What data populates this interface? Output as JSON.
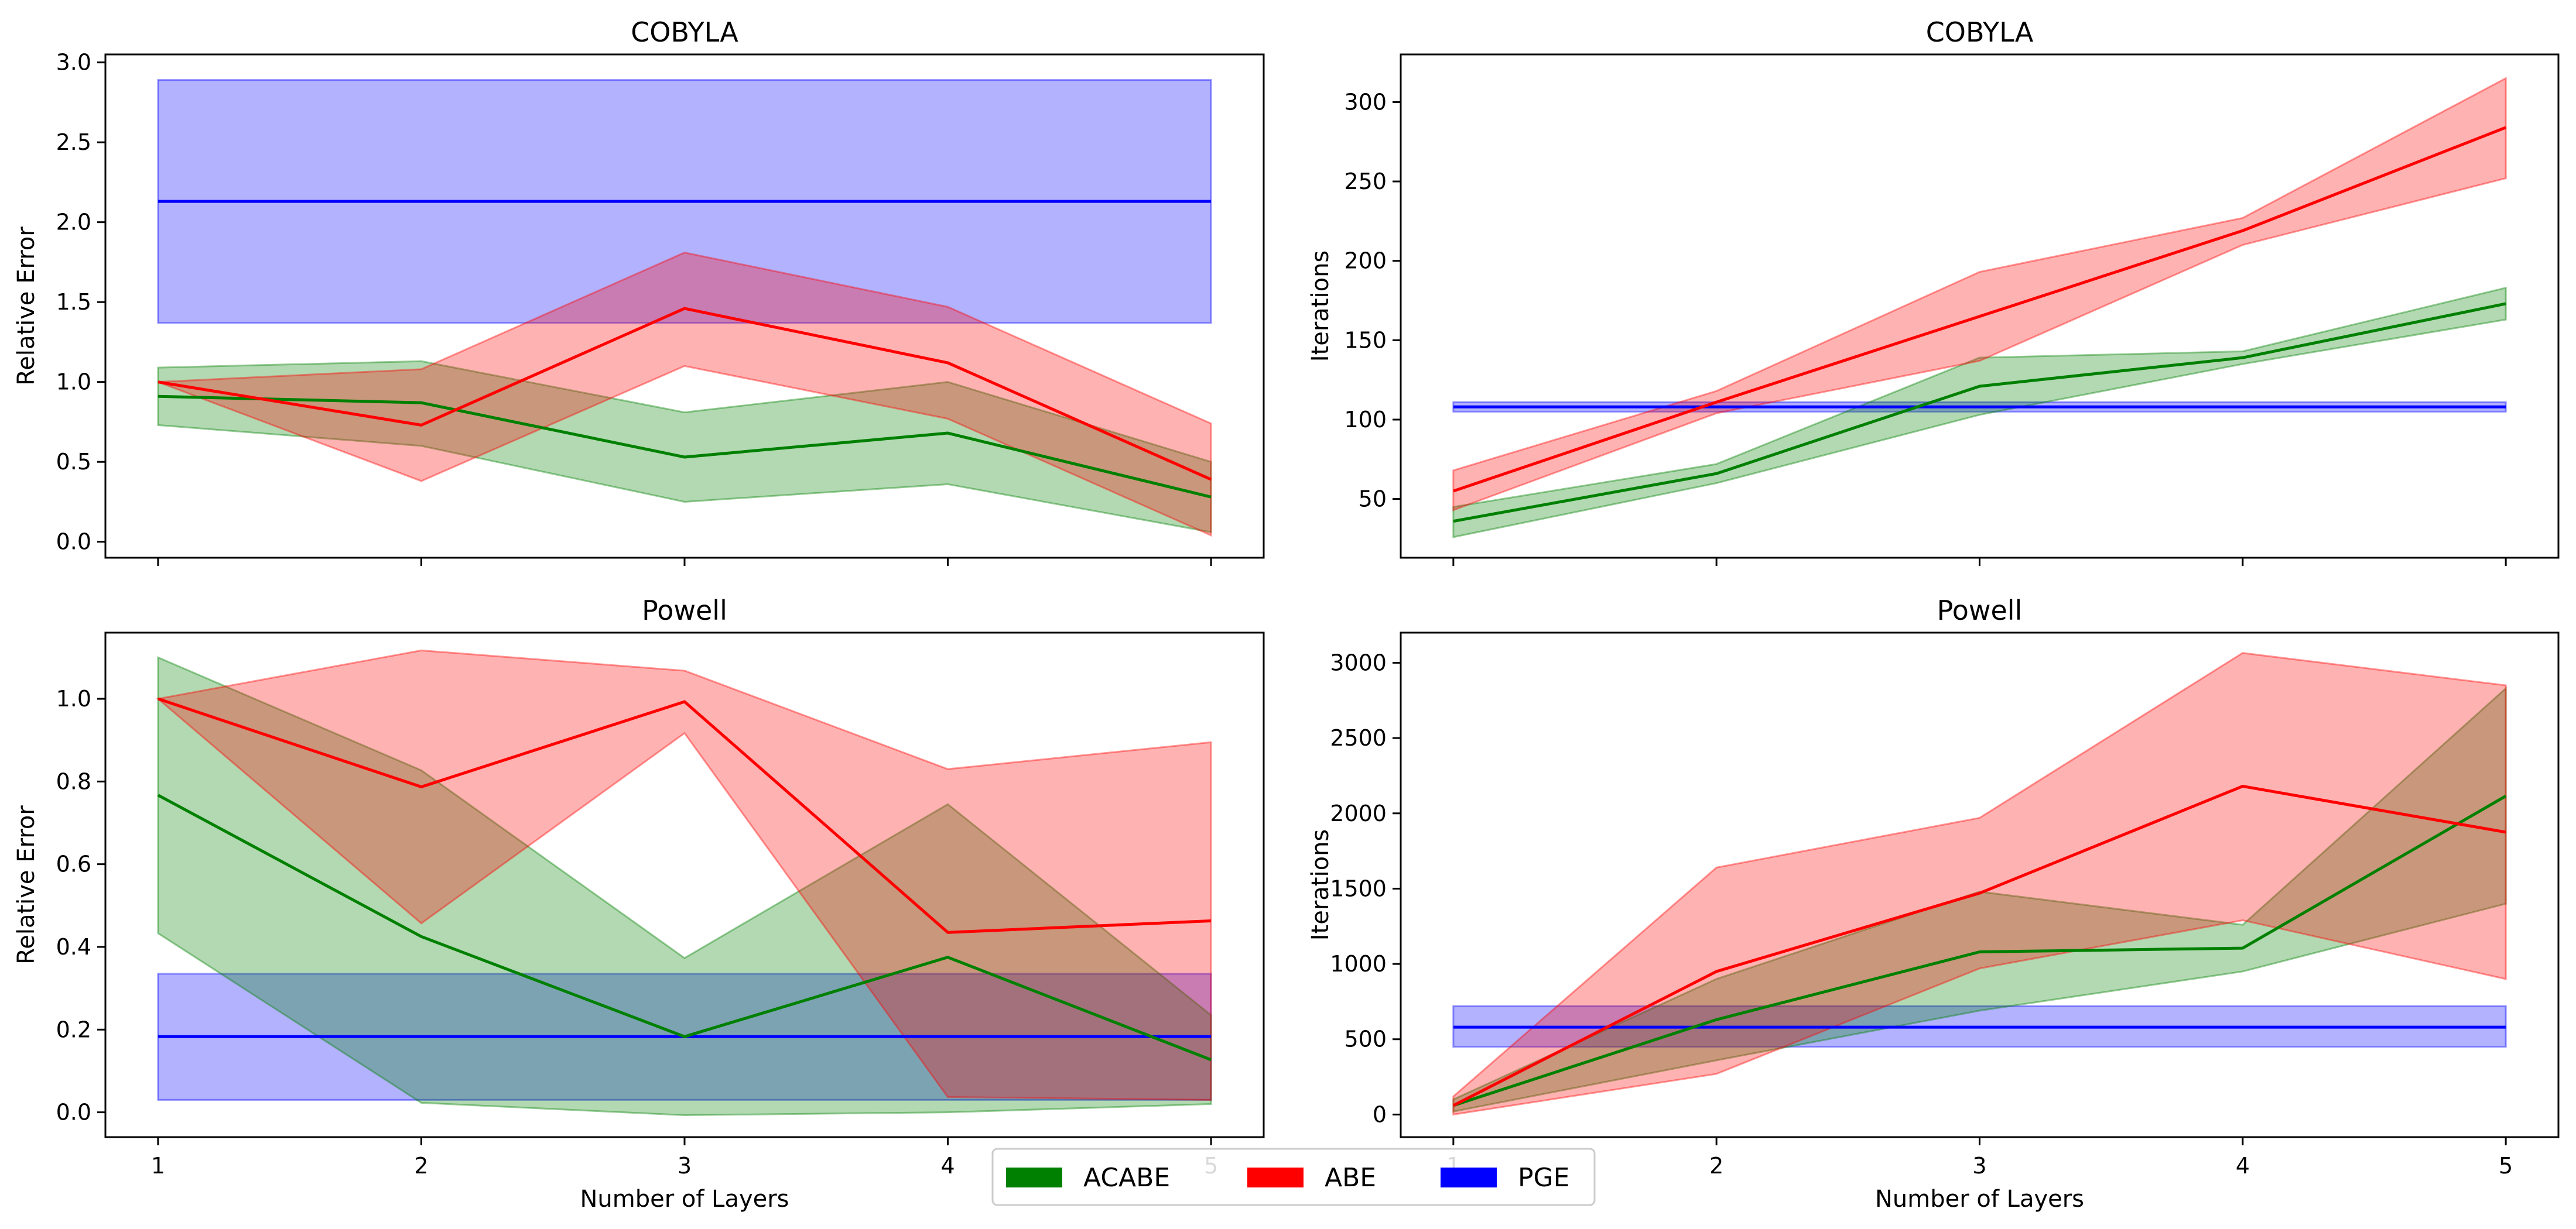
{
  "colors": {
    "ACABE": "#008000",
    "ABE": "#ff0000",
    "PGE": "#0000ff"
  },
  "legend": {
    "placement": "bottom-center",
    "entries": [
      {
        "name": "ACABE",
        "color": "#008000"
      },
      {
        "name": "ABE",
        "color": "#ff0000"
      },
      {
        "name": "PGE",
        "color": "#0000ff"
      }
    ]
  },
  "chart_data": [
    {
      "type": "line",
      "title": "COBYLA",
      "xlabel": "",
      "ylabel": "Relative Error",
      "x": [
        1,
        2,
        3,
        4,
        5
      ],
      "xticks": [
        "1",
        "2",
        "3",
        "4",
        "5"
      ],
      "show_xticklabels": false,
      "xlim": [
        0.8,
        5.2
      ],
      "ylim": [
        -0.1,
        3.05
      ],
      "yticks": [
        "0.0",
        "0.5",
        "1.0",
        "1.5",
        "2.0",
        "2.5",
        "3.0"
      ],
      "series": [
        {
          "name": "PGE",
          "color": "#0000ff",
          "values": [
            2.13,
            2.13,
            2.13,
            2.13,
            2.13
          ],
          "lower": [
            1.37,
            1.37,
            1.37,
            1.37,
            1.37
          ],
          "upper": [
            2.89,
            2.89,
            2.89,
            2.89,
            2.89
          ]
        },
        {
          "name": "ACABE",
          "color": "#008000",
          "values": [
            0.91,
            0.87,
            0.53,
            0.68,
            0.28
          ],
          "lower": [
            0.73,
            0.6,
            0.25,
            0.36,
            0.06
          ],
          "upper": [
            1.09,
            1.13,
            0.81,
            1.0,
            0.5
          ]
        },
        {
          "name": "ABE",
          "color": "#ff0000",
          "values": [
            1.0,
            0.73,
            1.46,
            1.12,
            0.39
          ],
          "lower": [
            1.0,
            0.38,
            1.1,
            0.77,
            0.04
          ],
          "upper": [
            1.0,
            1.08,
            1.81,
            1.47,
            0.74
          ]
        }
      ]
    },
    {
      "type": "line",
      "title": "COBYLA",
      "xlabel": "",
      "ylabel": "Iterations",
      "x": [
        1,
        2,
        3,
        4,
        5
      ],
      "xticks": [
        "1",
        "2",
        "3",
        "4",
        "5"
      ],
      "show_xticklabels": false,
      "xlim": [
        0.8,
        5.2
      ],
      "ylim": [
        13,
        330
      ],
      "yticks": [
        "50",
        "100",
        "150",
        "200",
        "250",
        "300"
      ],
      "series": [
        {
          "name": "PGE",
          "color": "#0000ff",
          "values": [
            108,
            108,
            108,
            108,
            108
          ],
          "lower": [
            105,
            105,
            105,
            105,
            105
          ],
          "upper": [
            111,
            111,
            111,
            111,
            111
          ]
        },
        {
          "name": "ACABE",
          "color": "#008000",
          "values": [
            36,
            66,
            121,
            139,
            173
          ],
          "lower": [
            26,
            60,
            103,
            135,
            163
          ],
          "upper": [
            45,
            72,
            139,
            143,
            183
          ]
        },
        {
          "name": "ABE",
          "color": "#ff0000",
          "values": [
            55,
            111,
            165,
            219,
            284
          ],
          "lower": [
            43,
            104,
            137,
            210,
            252
          ],
          "upper": [
            68,
            118,
            193,
            227,
            315
          ]
        }
      ]
    },
    {
      "type": "line",
      "title": "Powell",
      "xlabel": "Number of Layers",
      "ylabel": "Relative Error",
      "x": [
        1,
        2,
        3,
        4,
        5
      ],
      "xticks": [
        "1",
        "2",
        "3",
        "4",
        "5"
      ],
      "show_xticklabels": true,
      "xlim": [
        0.8,
        5.2
      ],
      "ylim": [
        -0.06,
        1.16
      ],
      "yticks": [
        "0.0",
        "0.2",
        "0.4",
        "0.6",
        "0.8",
        "1.0"
      ],
      "series": [
        {
          "name": "PGE",
          "color": "#0000ff",
          "values": [
            0.183,
            0.183,
            0.183,
            0.183,
            0.183
          ],
          "lower": [
            0.03,
            0.03,
            0.03,
            0.03,
            0.03
          ],
          "upper": [
            0.335,
            0.335,
            0.335,
            0.335,
            0.335
          ]
        },
        {
          "name": "ACABE",
          "color": "#008000",
          "values": [
            0.767,
            0.425,
            0.183,
            0.375,
            0.127
          ],
          "lower": [
            0.433,
            0.023,
            -0.007,
            0.0,
            0.02
          ],
          "upper": [
            1.1,
            0.827,
            0.373,
            0.745,
            0.235
          ]
        },
        {
          "name": "ABE",
          "color": "#ff0000",
          "values": [
            1.0,
            0.787,
            0.993,
            0.435,
            0.463
          ],
          "lower": [
            1.0,
            0.457,
            0.917,
            0.037,
            0.03
          ],
          "upper": [
            1.0,
            1.117,
            1.068,
            0.83,
            0.895
          ]
        }
      ]
    },
    {
      "type": "line",
      "title": "Powell",
      "xlabel": "Number of Layers",
      "ylabel": "Iterations",
      "x": [
        1,
        2,
        3,
        4,
        5
      ],
      "xticks": [
        "1",
        "2",
        "3",
        "4",
        "5"
      ],
      "show_xticklabels": true,
      "xlim": [
        0.8,
        5.2
      ],
      "ylim": [
        -150,
        3200
      ],
      "yticks": [
        "0",
        "500",
        "1000",
        "1500",
        "2000",
        "2500",
        "3000"
      ],
      "series": [
        {
          "name": "PGE",
          "color": "#0000ff",
          "values": [
            580,
            580,
            580,
            580,
            580
          ],
          "lower": [
            450,
            450,
            450,
            450,
            450
          ],
          "upper": [
            720,
            720,
            720,
            720,
            720
          ]
        },
        {
          "name": "ACABE",
          "color": "#008000",
          "values": [
            60,
            630,
            1080,
            1105,
            2115
          ],
          "lower": [
            20,
            360,
            690,
            950,
            1400
          ],
          "upper": [
            100,
            900,
            1480,
            1260,
            2830
          ]
        },
        {
          "name": "ABE",
          "color": "#ff0000",
          "values": [
            60,
            950,
            1470,
            2180,
            1875
          ],
          "lower": [
            0,
            270,
            970,
            1290,
            900
          ],
          "upper": [
            120,
            1640,
            1970,
            3065,
            2850
          ]
        }
      ]
    }
  ]
}
